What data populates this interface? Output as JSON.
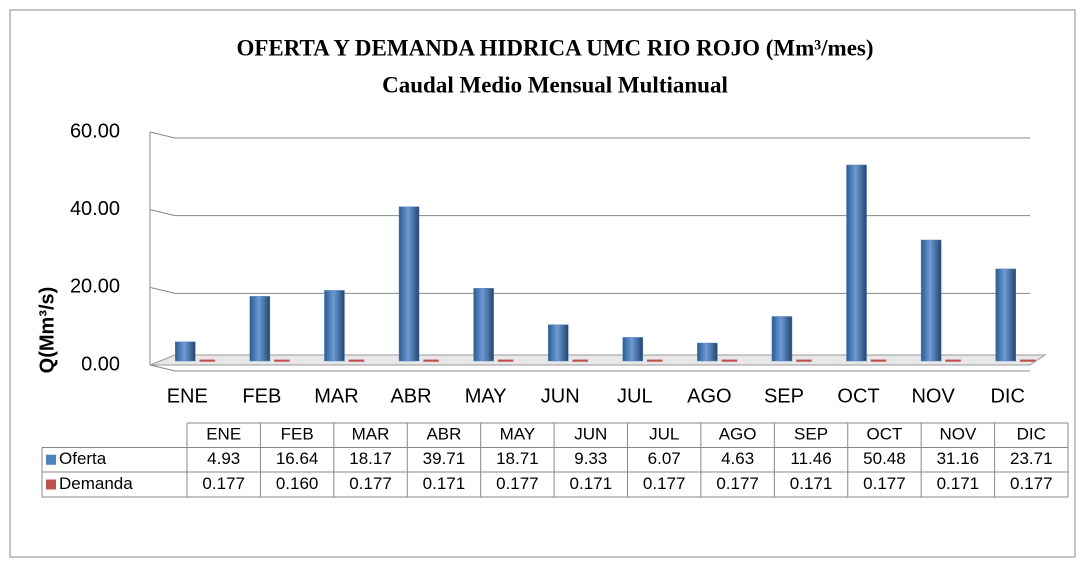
{
  "chart_data": {
    "type": "bar",
    "title": "OFERTA  Y DEMANDA HIDRICA UMC RIO ROJO (Mm³/mes)",
    "subtitle": "Caudal Medio Mensual Multianual",
    "y_label": "Q(Mm³/s)",
    "categories": [
      "ENE",
      "FEB",
      "MAR",
      "ABR",
      "MAY",
      "JUN",
      "JUL",
      "AGO",
      "SEP",
      "OCT",
      "NOV",
      "DIC"
    ],
    "series": [
      {
        "name": "Oferta",
        "color": "#4f81bd",
        "values": [
          4.93,
          16.64,
          18.17,
          39.71,
          18.71,
          9.33,
          6.07,
          4.63,
          11.46,
          50.48,
          31.16,
          23.71
        ]
      },
      {
        "name": "Demanda",
        "color": "#c0504d",
        "values": [
          0.177,
          0.16,
          0.177,
          0.171,
          0.177,
          0.171,
          0.177,
          0.177,
          0.171,
          0.177,
          0.171,
          0.177
        ],
        "value_labels": [
          "0.177",
          "0.160",
          "0.177",
          "0.171",
          "0.177",
          "0.171",
          "0.177",
          "0.177",
          "0.171",
          "0.177",
          "0.171",
          "0.177"
        ]
      }
    ],
    "ylim": [
      0,
      60
    ],
    "yticks": [
      {
        "value": 0,
        "label": "0.00"
      },
      {
        "value": 20,
        "label": "20.00"
      },
      {
        "value": 40,
        "label": "40.00"
      },
      {
        "value": 60,
        "label": "60.00"
      }
    ],
    "grid": true,
    "legend": "table"
  }
}
